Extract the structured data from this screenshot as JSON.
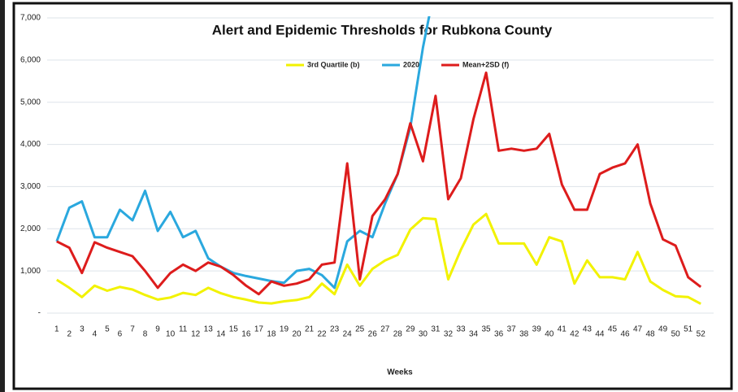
{
  "chart_data": {
    "type": "line",
    "title": "Alert and Epidemic Thresholds for Rubkona County",
    "x_label": "Weeks",
    "categories": [
      "1",
      "2",
      "3",
      "4",
      "5",
      "6",
      "7",
      "8",
      "9",
      "10",
      "11",
      "12",
      "13",
      "14",
      "15",
      "16",
      "17",
      "18",
      "19",
      "20",
      "21",
      "22",
      "23",
      "24",
      "25",
      "26",
      "27",
      "28",
      "29",
      "30",
      "31",
      "32",
      "33",
      "34",
      "35",
      "36",
      "37",
      "38",
      "39",
      "40",
      "41",
      "42",
      "43",
      "44",
      "45",
      "46",
      "47",
      "48",
      "49",
      "50",
      "51",
      "52"
    ],
    "series": [
      {
        "name": "3rd Quartile (b)",
        "color": "#f2f200",
        "values": [
          790,
          600,
          380,
          650,
          530,
          620,
          560,
          430,
          320,
          370,
          480,
          430,
          600,
          470,
          380,
          320,
          250,
          230,
          280,
          310,
          380,
          700,
          450,
          1150,
          650,
          1050,
          1250,
          1380,
          1980,
          2250,
          2230,
          800,
          1500,
          2100,
          2350,
          1650,
          1650,
          1650,
          1150,
          1800,
          1700,
          700,
          1250,
          850,
          850,
          800,
          1450,
          750,
          550,
          400,
          380,
          220
        ]
      },
      {
        "name": "2020",
        "color": "#2aa8de",
        "values": [
          1700,
          2500,
          2650,
          1800,
          1800,
          2450,
          2200,
          2900,
          1950,
          2400,
          1800,
          1950,
          1300,
          1100,
          950,
          880,
          820,
          760,
          720,
          1000,
          1050,
          900,
          600,
          1700,
          1950,
          1800,
          2600,
          3300,
          4400,
          6300,
          7800,
          null,
          null,
          null,
          null,
          null,
          null,
          null,
          null,
          null,
          null,
          null,
          null,
          null,
          null,
          null,
          null,
          null,
          null,
          null,
          null,
          null
        ]
      },
      {
        "name": "Mean+2SD (f)",
        "color": "#dd1c1c",
        "values": [
          1700,
          1550,
          950,
          1680,
          1550,
          1450,
          1350,
          1000,
          600,
          950,
          1150,
          1000,
          1200,
          1100,
          900,
          650,
          450,
          750,
          650,
          700,
          800,
          1150,
          1200,
          3550,
          800,
          2300,
          2700,
          3300,
          4500,
          3600,
          5150,
          2700,
          3200,
          4600,
          5700,
          3850,
          3900,
          3850,
          3900,
          4250,
          3050,
          2450,
          2450,
          3300,
          3450,
          3550,
          4000,
          2600,
          1750,
          1600,
          850,
          620
        ]
      }
    ],
    "ylim": [
      0,
      7000
    ],
    "yticks": [
      {
        "value": 0,
        "label": "-"
      },
      {
        "value": 1000,
        "label": "1,000"
      },
      {
        "value": 2000,
        "label": "2,000"
      },
      {
        "value": 3000,
        "label": "3,000"
      },
      {
        "value": 4000,
        "label": "4,000"
      },
      {
        "value": 5000,
        "label": "5,000"
      },
      {
        "value": 6000,
        "label": "6,000"
      },
      {
        "value": 7000,
        "label": "7,000"
      }
    ],
    "grid": true,
    "legend": "top"
  }
}
